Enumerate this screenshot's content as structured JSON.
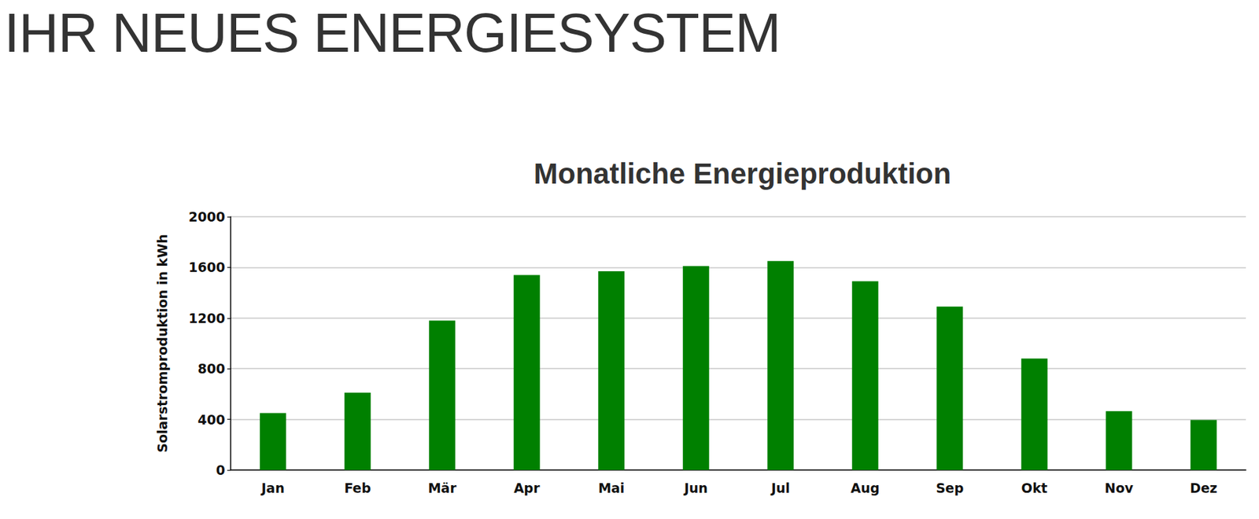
{
  "header": {
    "title": "IHR NEUES ENERGIESYSTEM"
  },
  "chart_data": {
    "type": "bar",
    "title": "Monatliche Energieproduktion",
    "y_label": "Solarstromproduktion in kWh",
    "categories": [
      "Jan",
      "Feb",
      "Mär",
      "Apr",
      "Mai",
      "Jun",
      "Jul",
      "Aug",
      "Sep",
      "Okt",
      "Nov",
      "Dez"
    ],
    "values": [
      450,
      610,
      1180,
      1540,
      1570,
      1610,
      1650,
      1490,
      1290,
      880,
      465,
      395
    ],
    "color": "#008000",
    "ylim": [
      0,
      2000
    ],
    "yticks": [
      0,
      400,
      800,
      1200,
      1600,
      2000
    ],
    "grid": true
  }
}
